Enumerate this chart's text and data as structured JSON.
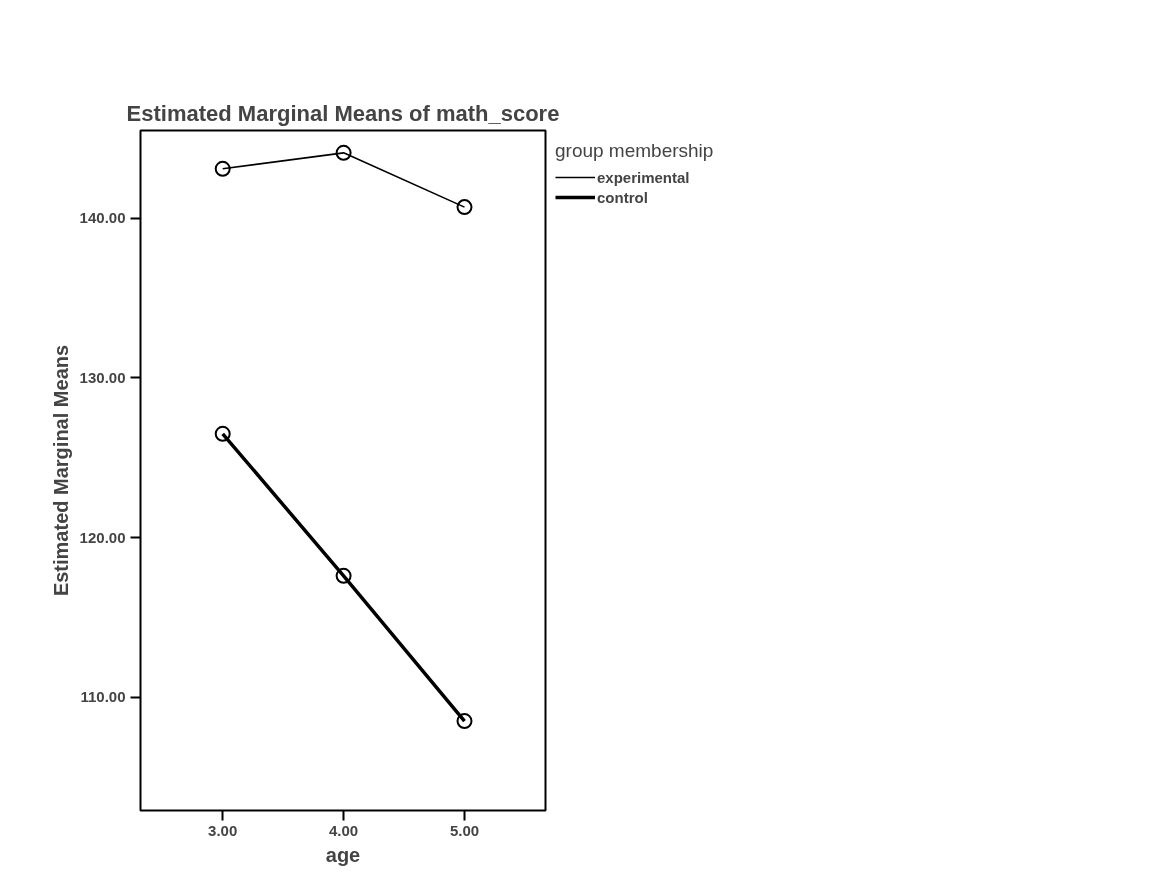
{
  "chart_data": {
    "type": "line",
    "title": "Estimated Marginal Means of math_score",
    "xlabel": "age",
    "ylabel": "Estimated Marginal Means",
    "legend_title": "group membership",
    "x": [
      3,
      4,
      5
    ],
    "series": [
      {
        "name": "experimental",
        "color": "#000000",
        "values": [
          143.1,
          144.1,
          140.7
        ]
      },
      {
        "name": "control",
        "color": "#000000",
        "values": [
          126.5,
          117.6,
          108.5
        ]
      }
    ],
    "xlim": [
      2.32,
      5.67
    ],
    "ylim": [
      102.9,
      145.5
    ],
    "xticks": [
      {
        "value": 3,
        "label": "3.00"
      },
      {
        "value": 4,
        "label": "4.00"
      },
      {
        "value": 5,
        "label": "5.00"
      }
    ],
    "yticks": [
      {
        "value": 110,
        "label": "110.00"
      },
      {
        "value": 120,
        "label": "120.00"
      },
      {
        "value": 130,
        "label": "130.00"
      },
      {
        "value": 140,
        "label": "140.00"
      }
    ],
    "marker": "circle",
    "grid": false,
    "legend": "top right",
    "line_style": "solid"
  }
}
